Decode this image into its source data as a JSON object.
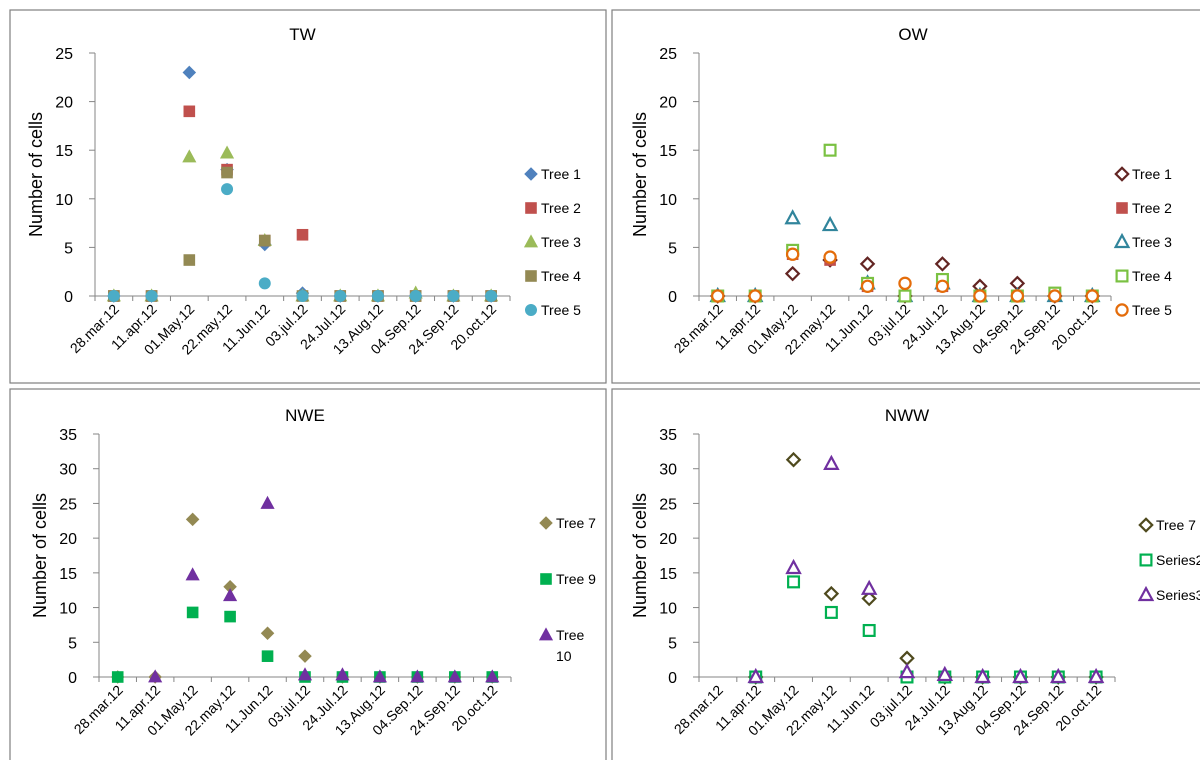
{
  "colors": {
    "tree1_blue": "#4F81BD",
    "tree2_red": "#C0504D",
    "tree3_green": "#9BBB59",
    "tree4_olive": "#938953",
    "tree5_cyan": "#4BACC6",
    "ow_tree1": "#632523",
    "ow_tree2": "#C0504D",
    "ow_tree3": "#31859C",
    "ow_tree4": "#7AC142",
    "ow_tree5": "#E46C0A",
    "nwe_tree7": "#938953",
    "nwe_tree9": "#00B050",
    "nwe_tree10": "#7030A0",
    "nww_tree7": "#4F4A1E",
    "nww_series2": "#00B050",
    "nww_series3": "#7030A0"
  },
  "chart_data": [
    {
      "type": "scatter",
      "title": "TW",
      "ylabel": "Number of cells",
      "xlabel": "",
      "ylim": [
        0,
        25
      ],
      "yticks": [
        "0",
        "5",
        "10",
        "15",
        "20",
        "25"
      ],
      "categories": [
        "28.mar.12",
        "11.apr.12",
        "01.May.12",
        "22.may.12",
        "11.Jun.12",
        "03.jul.12",
        "24.Jul.12",
        "13.Aug.12",
        "04.Sep.12",
        "24.Sep.12",
        "20.oct.12"
      ],
      "legend_position": "right",
      "series": [
        {
          "name": "Tree 1",
          "marker": "diamond-filled",
          "color": "#4F81BD",
          "values": [
            0,
            0,
            23,
            13,
            5.3,
            0.3,
            0,
            0,
            0,
            0,
            0
          ]
        },
        {
          "name": "Tree 2",
          "marker": "square-filled",
          "color": "#C0504D",
          "values": [
            0,
            0,
            19,
            13,
            5.7,
            6.3,
            0,
            0,
            0,
            0,
            0
          ]
        },
        {
          "name": "Tree 3",
          "marker": "triangle-filled",
          "color": "#9BBB59",
          "values": [
            0,
            0,
            14.3,
            14.7,
            5.7,
            0,
            0,
            0,
            0.3,
            0,
            0
          ]
        },
        {
          "name": "Tree 4",
          "marker": "square-filled",
          "color": "#938953",
          "values": [
            0,
            0,
            3.7,
            12.7,
            5.7,
            0,
            0,
            0,
            0,
            0,
            0
          ]
        },
        {
          "name": "Tree 5",
          "marker": "circle-filled",
          "color": "#4BACC6",
          "values": [
            0,
            0,
            null,
            11,
            1.3,
            0,
            0,
            0,
            0,
            0,
            0
          ]
        }
      ]
    },
    {
      "type": "scatter",
      "title": "OW",
      "ylabel": "Number of cells",
      "xlabel": "",
      "ylim": [
        0,
        25
      ],
      "yticks": [
        "0",
        "5",
        "10",
        "15",
        "20",
        "25"
      ],
      "categories": [
        "28.mar.12",
        "11.apr.12",
        "01.May.12",
        "22.may.12",
        "11.Jun.12",
        "03.jul.12",
        "24.Jul.12",
        "13.Aug.12",
        "04.Sep.12",
        "24.Sep.12",
        "20.oct.12"
      ],
      "legend_position": "right",
      "series": [
        {
          "name": "Tree 1",
          "marker": "diamond-open",
          "color": "#632523",
          "values": [
            0,
            0,
            2.3,
            3.7,
            3.3,
            0,
            3.3,
            1,
            1.3,
            0,
            0
          ]
        },
        {
          "name": "Tree 2",
          "marker": "square-filled",
          "color": "#C0504D",
          "values": [
            0,
            0,
            4.3,
            3.7,
            1,
            0,
            1,
            0,
            0,
            0,
            0
          ]
        },
        {
          "name": "Tree 3",
          "marker": "triangle-open",
          "color": "#31859C",
          "values": [
            0,
            0,
            8,
            7.3,
            1.3,
            0,
            1.3,
            0,
            0,
            0,
            0
          ]
        },
        {
          "name": "Tree 4",
          "marker": "square-open",
          "color": "#7AC142",
          "values": [
            0,
            0,
            4.7,
            15,
            1.3,
            0,
            1.7,
            0,
            0,
            0.3,
            0
          ]
        },
        {
          "name": "Tree 5",
          "marker": "circle-open",
          "color": "#E46C0A",
          "values": [
            0,
            0,
            4.3,
            4,
            1,
            1.3,
            1,
            0,
            0,
            0,
            0
          ]
        }
      ]
    },
    {
      "type": "scatter",
      "title": "NWE",
      "ylabel": "Number of cells",
      "xlabel": "",
      "ylim": [
        0,
        35
      ],
      "yticks": [
        "0",
        "5",
        "10",
        "15",
        "20",
        "25",
        "30",
        "35"
      ],
      "categories": [
        "28.mar.12",
        "11.apr.12",
        "01.May.12",
        "22.may.12",
        "11.Jun.12",
        "03.jul.12",
        "24.Jul.12",
        "13.Aug.12",
        "04.Sep.12",
        "24.Sep.12",
        "20.oct.12"
      ],
      "legend_position": "right",
      "series": [
        {
          "name": "Tree 7",
          "marker": "diamond-filled",
          "color": "#938953",
          "values": [
            0,
            0,
            22.7,
            13,
            6.3,
            3,
            0,
            0,
            0,
            0,
            0
          ]
        },
        {
          "name": "Tree 9",
          "marker": "square-filled",
          "color": "#00B050",
          "values": [
            0,
            null,
            9.3,
            8.7,
            3,
            0,
            0,
            0,
            0,
            0,
            0
          ]
        },
        {
          "name": "Tree 10",
          "legend_lines": [
            "Tree",
            "10"
          ],
          "marker": "triangle-filled",
          "color": "#7030A0",
          "values": [
            null,
            0,
            14.7,
            11.7,
            25,
            0.3,
            0.3,
            0,
            0,
            0,
            0
          ]
        }
      ]
    },
    {
      "type": "scatter",
      "title": "NWW",
      "ylabel": "Number of cells",
      "xlabel": "",
      "ylim": [
        0,
        35
      ],
      "yticks": [
        "0",
        "5",
        "10",
        "15",
        "20",
        "25",
        "30",
        "35"
      ],
      "categories": [
        "28.mar.12",
        "11.apr.12",
        "01.May.12",
        "22.may.12",
        "11.Jun.12",
        "03.jul.12",
        "24.Jul.12",
        "13.Aug.12",
        "04.Sep.12",
        "24.Sep.12",
        "20.oct.12"
      ],
      "legend_position": "right",
      "series": [
        {
          "name": "Tree 7",
          "marker": "diamond-open",
          "color": "#4F4A1E",
          "values": [
            null,
            0,
            31.3,
            12,
            11.3,
            2.7,
            0,
            0,
            0,
            0,
            0
          ]
        },
        {
          "name": "Series2",
          "marker": "square-open",
          "color": "#00B050",
          "values": [
            null,
            0,
            13.7,
            9.3,
            6.7,
            0,
            0,
            0,
            0,
            0,
            0
          ]
        },
        {
          "name": "Series3",
          "marker": "triangle-open",
          "color": "#7030A0",
          "values": [
            null,
            0,
            15.7,
            30.7,
            12.7,
            0.7,
            0.3,
            0,
            0,
            0,
            0
          ]
        }
      ]
    }
  ]
}
